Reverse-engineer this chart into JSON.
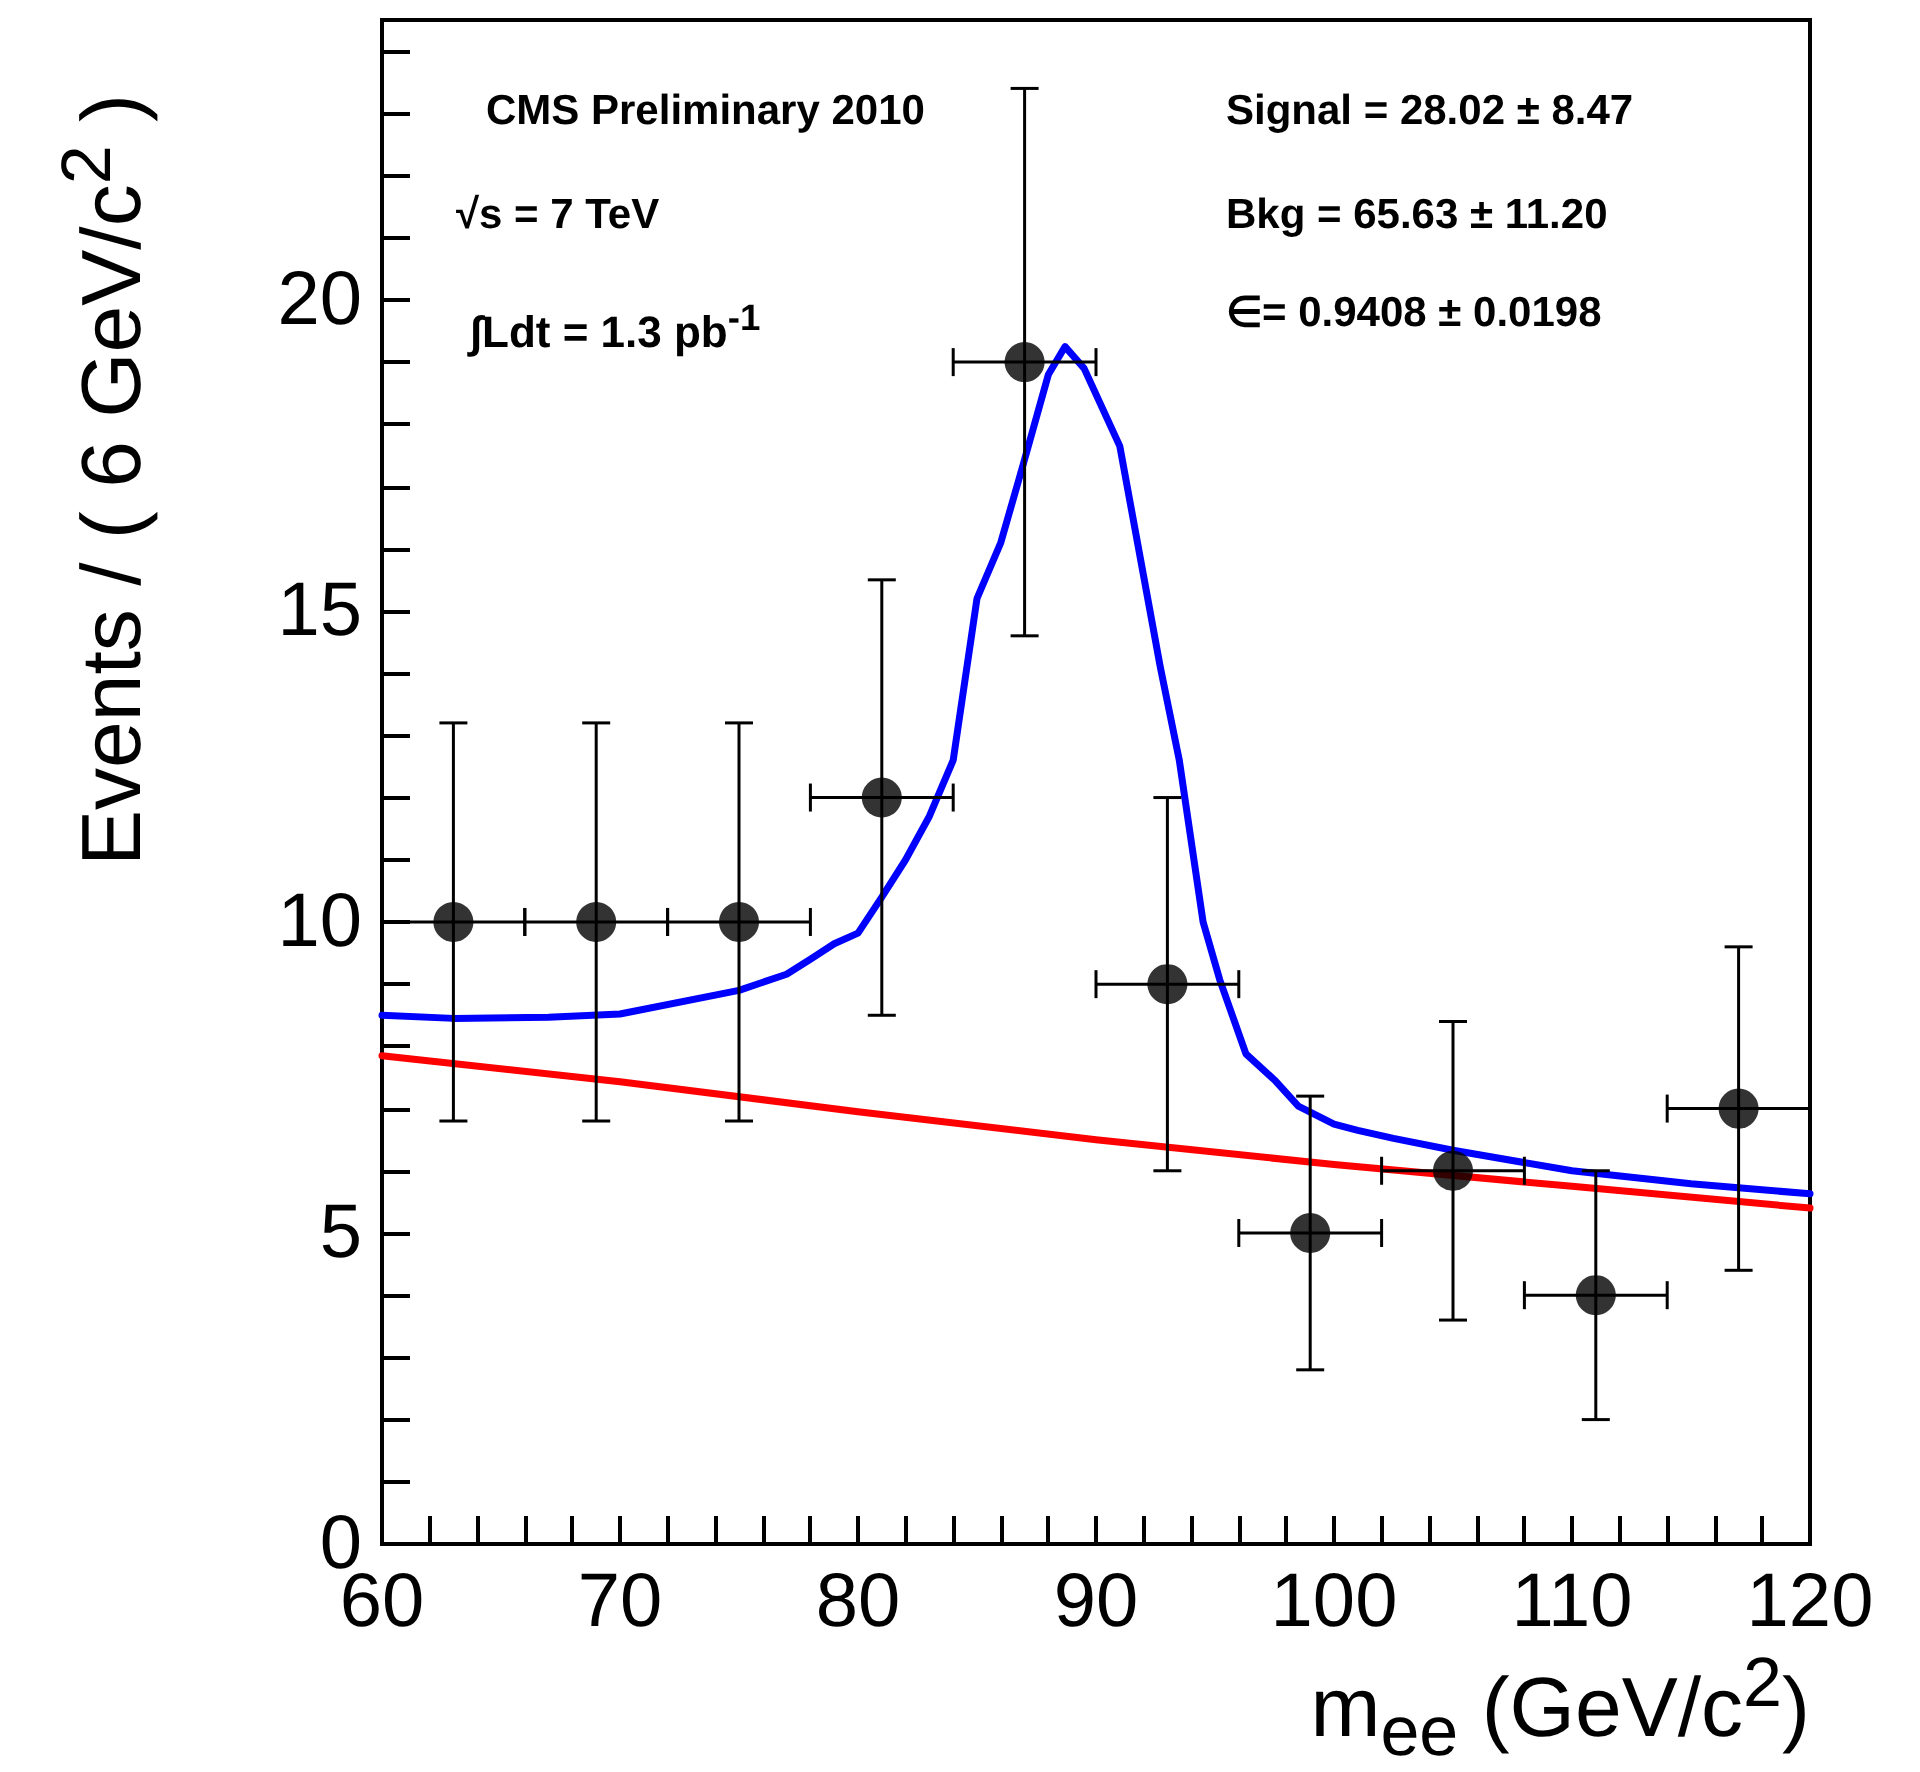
{
  "chart_data": {
    "type": "scatter",
    "xlabel": "m$_{ee}$ (GeV/c$^{2}$)",
    "ylabel": "Events / ( 6 GeV/c$^{2}$ )",
    "annotations": [
      "CMS Preliminary 2010",
      "√s = 7 TeV",
      "∫Ldt = 1.3 pb$^{-1}$",
      "Signal = 28.02 ± 8.47",
      "Bkg = 65.63 ± 11.20",
      "∈= 0.9408 ± 0.0198"
    ],
    "xlim": [
      60,
      120
    ],
    "xticks": [
      60,
      {
        "value": 62,
        "label": null
      },
      {
        "value": 64,
        "label": null
      },
      {
        "value": 66,
        "label": null
      },
      {
        "value": 68,
        "label": null
      },
      70,
      {
        "value": 72,
        "label": null
      },
      {
        "value": 74,
        "label": null
      },
      {
        "value": 76,
        "label": null
      },
      {
        "value": 78,
        "label": null
      },
      80,
      {
        "value": 82,
        "label": null
      },
      {
        "value": 84,
        "label": null
      },
      {
        "value": 86,
        "label": null
      },
      {
        "value": 88,
        "label": null
      },
      90,
      {
        "value": 92,
        "label": null
      },
      {
        "value": 94,
        "label": null
      },
      {
        "value": 96,
        "label": null
      },
      {
        "value": 98,
        "label": null
      },
      100,
      {
        "value": 102,
        "label": null
      },
      {
        "value": 104,
        "label": null
      },
      {
        "value": 106,
        "label": null
      },
      {
        "value": 108,
        "label": null
      },
      110,
      {
        "value": 112,
        "label": null
      },
      {
        "value": 114,
        "label": null
      },
      {
        "value": 116,
        "label": null
      },
      {
        "value": 118,
        "label": null
      },
      120
    ],
    "ylim": [
      0,
      24.5
    ],
    "yticks": [
      0,
      {
        "value": 1,
        "label": null
      },
      {
        "value": 2,
        "label": null
      },
      {
        "value": 3,
        "label": null
      },
      {
        "value": 4,
        "label": null
      },
      5,
      {
        "value": 6,
        "label": null
      },
      {
        "value": 7,
        "label": null
      },
      {
        "value": 8,
        "label": null
      },
      {
        "value": 9,
        "label": null
      },
      10,
      {
        "value": 11,
        "label": null
      },
      {
        "value": 12,
        "label": null
      },
      {
        "value": 13,
        "label": null
      },
      {
        "value": 14,
        "label": null
      },
      15,
      {
        "value": 16,
        "label": null
      },
      {
        "value": 17,
        "label": null
      },
      {
        "value": 18,
        "label": null
      },
      {
        "value": 19,
        "label": null
      },
      20,
      {
        "value": 21,
        "label": null
      },
      {
        "value": 22,
        "label": null
      },
      {
        "value": 23,
        "label": null
      },
      {
        "value": 24,
        "label": null
      }
    ],
    "grid": false,
    "series": [
      {
        "type": "line",
        "color": "#ff0000",
        "marker": "none",
        "line_style": "solid",
        "x": [
          60,
          70,
          80,
          90,
          100,
          110,
          120
        ],
        "values": [
          7.85,
          7.43,
          6.95,
          6.5,
          6.1,
          5.75,
          5.4
        ]
      },
      {
        "type": "line",
        "color": "#0000ff",
        "marker": "none",
        "line_style": "solid",
        "x": [
          60,
          63,
          67,
          70,
          75,
          77,
          78,
          79,
          80,
          81,
          82,
          83,
          84,
          85,
          86,
          86.9,
          88,
          88.7,
          89.5,
          91,
          92.7,
          93.5,
          94.5,
          95.2,
          96.3,
          97.5,
          98.5,
          100,
          101,
          102.5,
          105,
          110,
          115,
          120
        ],
        "values": [
          8.5,
          8.45,
          8.47,
          8.52,
          8.9,
          9.16,
          9.4,
          9.65,
          9.82,
          10.4,
          11,
          11.7,
          12.6,
          15.2,
          16.1,
          17.3,
          18.8,
          19.25,
          18.9,
          17.65,
          14.1,
          12.6,
          10,
          9.07,
          7.88,
          7.46,
          7.04,
          6.75,
          6.65,
          6.52,
          6.33,
          6,
          5.79,
          5.63
        ]
      },
      {
        "color": "#000000",
        "marker": "circle",
        "x": [
          63,
          69,
          75,
          81,
          87,
          93,
          99,
          105,
          111,
          117
        ],
        "values": [
          10,
          10,
          10,
          12,
          19,
          9,
          5,
          6,
          4,
          7
        ],
        "errors": [
          3.2,
          3.2,
          3.2,
          3.5,
          4.4,
          3,
          2.2,
          2.4,
          2,
          2.6
        ],
        "xerrors": [
          3,
          3,
          3,
          3,
          3,
          3,
          3,
          3,
          3,
          3
        ]
      }
    ]
  }
}
